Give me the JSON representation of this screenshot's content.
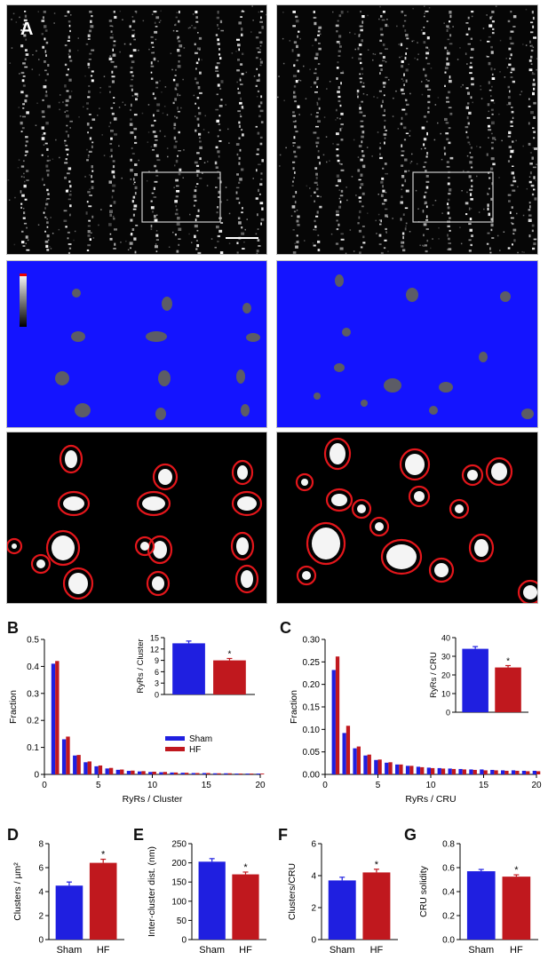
{
  "panel_labels": {
    "a": "A",
    "b": "B",
    "c": "C",
    "d": "D",
    "e": "E",
    "f": "F",
    "g": "G"
  },
  "colors": {
    "sham": "#1f1fe0",
    "hf": "#c0181e",
    "background_blue": "#1414ff",
    "outline_red": "#e3161b"
  },
  "legend": {
    "sham": "Sham",
    "hf": "HF"
  },
  "significance_marker": "*",
  "chart_data": [
    {
      "id": "B",
      "type": "bar",
      "xlabel": "RyRs / Cluster",
      "ylabel": "Fraction",
      "ylim": [
        0,
        0.5
      ],
      "yticks": [
        "0",
        "0.1",
        "0.2",
        "0.3",
        "0.4",
        "0.5"
      ],
      "xticks": [
        "0",
        "5",
        "10",
        "15",
        "20"
      ],
      "x": [
        1,
        2,
        3,
        4,
        5,
        6,
        7,
        8,
        9,
        10,
        11,
        12,
        13,
        14,
        15,
        16,
        17,
        18,
        19,
        20
      ],
      "series": [
        {
          "name": "Sham",
          "values": [
            0.41,
            0.13,
            0.07,
            0.045,
            0.03,
            0.022,
            0.017,
            0.013,
            0.011,
            0.009,
            0.008,
            0.007,
            0.006,
            0.005,
            0.005,
            0.004,
            0.004,
            0.003,
            0.003,
            0.003
          ]
        },
        {
          "name": "HF",
          "values": [
            0.42,
            0.14,
            0.072,
            0.048,
            0.033,
            0.024,
            0.018,
            0.014,
            0.012,
            0.01,
            0.009,
            0.007,
            0.006,
            0.005,
            0.005,
            0.004,
            0.004,
            0.003,
            0.003,
            0.003
          ]
        }
      ],
      "inset": {
        "type": "bar",
        "ylabel": "RyRs / Cluster",
        "ylim": [
          0,
          15
        ],
        "yticks": [
          "0",
          "3",
          "6",
          "9",
          "12",
          "15"
        ],
        "categories": [
          "Sham",
          "HF"
        ],
        "values": [
          13.5,
          9.0
        ],
        "errors": [
          0.6,
          0.5
        ],
        "significance": [
          false,
          true
        ]
      }
    },
    {
      "id": "C",
      "type": "bar",
      "xlabel": "RyRs / CRU",
      "ylabel": "Fraction",
      "ylim": [
        0,
        0.3
      ],
      "yticks": [
        "0.00",
        "0.05",
        "0.10",
        "0.15",
        "0.20",
        "0.25",
        "0.30"
      ],
      "xticks": [
        "0",
        "5",
        "10",
        "15",
        "20"
      ],
      "x": [
        1,
        2,
        3,
        4,
        5,
        6,
        7,
        8,
        9,
        10,
        11,
        12,
        13,
        14,
        15,
        16,
        17,
        18,
        19,
        20
      ],
      "series": [
        {
          "name": "Sham",
          "values": [
            0.232,
            0.092,
            0.058,
            0.042,
            0.032,
            0.026,
            0.022,
            0.019,
            0.017,
            0.015,
            0.014,
            0.013,
            0.012,
            0.011,
            0.011,
            0.01,
            0.009,
            0.009,
            0.008,
            0.008
          ]
        },
        {
          "name": "HF",
          "values": [
            0.262,
            0.108,
            0.062,
            0.044,
            0.033,
            0.027,
            0.022,
            0.019,
            0.016,
            0.014,
            0.013,
            0.012,
            0.011,
            0.01,
            0.009,
            0.009,
            0.008,
            0.008,
            0.007,
            0.007
          ]
        }
      ],
      "inset": {
        "type": "bar",
        "ylabel": "RyRs / CRU",
        "ylim": [
          0,
          40
        ],
        "yticks": [
          "0",
          "10",
          "20",
          "30",
          "40"
        ],
        "categories": [
          "Sham",
          "HF"
        ],
        "values": [
          34,
          24
        ],
        "errors": [
          1.2,
          1.0
        ],
        "significance": [
          false,
          true
        ]
      }
    },
    {
      "id": "D",
      "type": "bar",
      "ylabel": "Clusters / µm²",
      "ylim": [
        0,
        8
      ],
      "yticks": [
        "0",
        "2",
        "4",
        "6",
        "8"
      ],
      "categories": [
        "Sham",
        "HF"
      ],
      "values": [
        4.5,
        6.4
      ],
      "errors": [
        0.3,
        0.3
      ],
      "significance": [
        false,
        true
      ]
    },
    {
      "id": "E",
      "type": "bar",
      "ylabel": "Inter-cluster dist. (nm)",
      "ylim": [
        0,
        250
      ],
      "yticks": [
        "0",
        "50",
        "100",
        "150",
        "200",
        "250"
      ],
      "categories": [
        "Sham",
        "HF"
      ],
      "values": [
        203,
        170
      ],
      "errors": [
        8,
        6
      ],
      "significance": [
        false,
        true
      ]
    },
    {
      "id": "F",
      "type": "bar",
      "ylabel": "Clusters/CRU",
      "ylim": [
        0,
        6
      ],
      "yticks": [
        "0",
        "2",
        "4",
        "6"
      ],
      "categories": [
        "Sham",
        "HF"
      ],
      "values": [
        3.7,
        4.2
      ],
      "errors": [
        0.2,
        0.2
      ],
      "significance": [
        false,
        true
      ]
    },
    {
      "id": "G",
      "type": "bar",
      "ylabel": "CRU solidity",
      "ylim": [
        0,
        0.8
      ],
      "yticks": [
        "0.0",
        "0.2",
        "0.4",
        "0.6",
        "0.8"
      ],
      "categories": [
        "Sham",
        "HF"
      ],
      "values": [
        0.57,
        0.525
      ],
      "errors": [
        0.015,
        0.015
      ],
      "significance": [
        false,
        true
      ]
    }
  ]
}
